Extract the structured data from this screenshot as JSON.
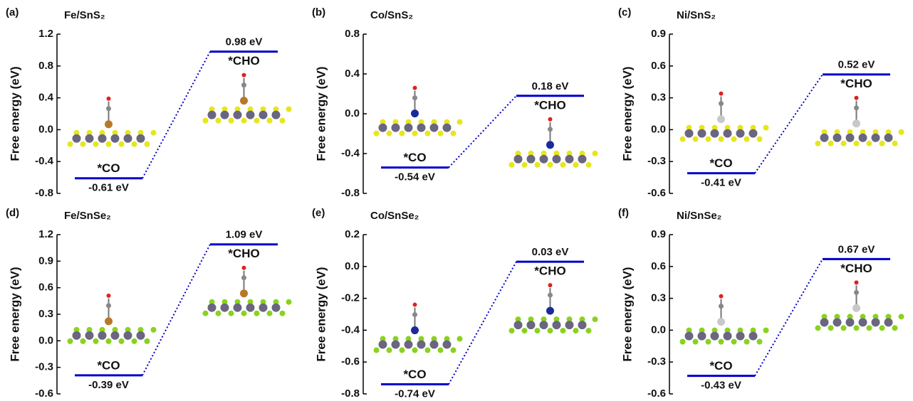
{
  "chart_data": [
    {
      "type": "energy",
      "panel": "(a)",
      "title": "Fe/SnS₂",
      "ylabel": "Free energy (eV)",
      "categories": [
        "*CO",
        "*CHO"
      ],
      "values": [
        -0.61,
        0.98
      ],
      "value_labels": [
        "-0.61 eV",
        "0.98 eV"
      ],
      "color": "#0000cc",
      "ylim": [
        -0.8,
        1.2
      ],
      "yticks": [
        -0.8,
        -0.4,
        {
          "value": 0,
          "label": "0.0"
        },
        0.4,
        0.8,
        1.2
      ]
    },
    {
      "type": "energy",
      "panel": "(b)",
      "title": "Co/SnS₂",
      "ylabel": "Free energy (eV)",
      "categories": [
        "*CO",
        "*CHO"
      ],
      "values": [
        -0.54,
        0.18
      ],
      "value_labels": [
        "-0.54 eV",
        "0.18 eV"
      ],
      "color": "#0000cc",
      "ylim": [
        -0.8,
        0.8
      ],
      "yticks": [
        -0.8,
        -0.4,
        {
          "value": 0,
          "label": "0.0"
        },
        0.4,
        0.8
      ]
    },
    {
      "type": "energy",
      "panel": "(c)",
      "title": "Ni/SnS₂",
      "ylabel": "Free energy (eV)",
      "categories": [
        "*CO",
        "*CHO"
      ],
      "values": [
        -0.41,
        0.52
      ],
      "value_labels": [
        "-0.41 eV",
        "0.52 eV"
      ],
      "color": "#0000cc",
      "ylim": [
        -0.6,
        0.9
      ],
      "yticks": [
        -0.6,
        -0.3,
        {
          "value": 0,
          "label": "0.0"
        },
        0.3,
        0.6,
        0.9
      ]
    },
    {
      "type": "energy",
      "panel": "(d)",
      "title": "Fe/SnSe₂",
      "ylabel": "Free energy (eV)",
      "categories": [
        "*CO",
        "*CHO"
      ],
      "values": [
        -0.39,
        1.09
      ],
      "value_labels": [
        "-0.39 eV",
        "1.09 eV"
      ],
      "color": "#0000cc",
      "ylim": [
        -0.6,
        1.2
      ],
      "yticks": [
        -0.6,
        -0.3,
        {
          "value": 0,
          "label": "0.0"
        },
        0.3,
        0.6,
        0.9,
        1.2
      ]
    },
    {
      "type": "energy",
      "panel": "(e)",
      "title": "Co/SnSe₂",
      "ylabel": "Free energy (eV)",
      "categories": [
        "*CO",
        "*CHO"
      ],
      "values": [
        -0.74,
        0.03
      ],
      "value_labels": [
        "-0.74 eV",
        "0.03 eV"
      ],
      "color": "#0000cc",
      "ylim": [
        -0.8,
        0.2
      ],
      "yticks": [
        -0.8,
        -0.6,
        -0.4,
        -0.2,
        {
          "value": 0,
          "label": "0.0"
        },
        0.2
      ]
    },
    {
      "type": "energy",
      "panel": "(f)",
      "title": "Ni/SnSe₂",
      "ylabel": "Free energy (eV)",
      "categories": [
        "*CO",
        "*CHO"
      ],
      "values": [
        -0.43,
        0.67
      ],
      "value_labels": [
        "-0.43 eV",
        "0.67 eV"
      ],
      "color": "#0000cc",
      "ylim": [
        -0.6,
        0.9
      ],
      "yticks": [
        -0.6,
        -0.3,
        {
          "value": 0,
          "label": "0.0"
        },
        0.3,
        0.6,
        0.9
      ]
    }
  ]
}
